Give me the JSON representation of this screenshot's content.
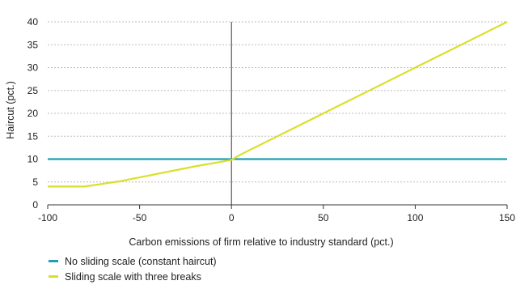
{
  "chart_data": {
    "type": "line",
    "xlabel": "Carbon emissions of firm relative to industry standard (pct.)",
    "ylabel": "Haircut (pct.)",
    "xlim": [
      -100,
      150
    ],
    "ylim": [
      0,
      40
    ],
    "xticks": [
      -100,
      -50,
      0,
      50,
      100,
      150
    ],
    "yticks": [
      0,
      5,
      10,
      15,
      20,
      25,
      30,
      35,
      40
    ],
    "grid": "horizontal",
    "legend_position": "bottom-left",
    "series": [
      {
        "name": "No sliding scale (constant haircut)",
        "color": "#1f9fb0",
        "x": [
          -100,
          150
        ],
        "y": [
          10,
          10
        ]
      },
      {
        "name": "Sliding scale with three breaks",
        "color": "#d8e02a",
        "x": [
          -100,
          -80,
          -60,
          -40,
          -20,
          0,
          5,
          25,
          50,
          75,
          100,
          125,
          140,
          150
        ],
        "y": [
          4,
          4,
          5.2,
          6.8,
          8.4,
          9.8,
          11,
          15,
          20,
          25,
          30,
          35,
          38,
          40
        ]
      }
    ]
  }
}
